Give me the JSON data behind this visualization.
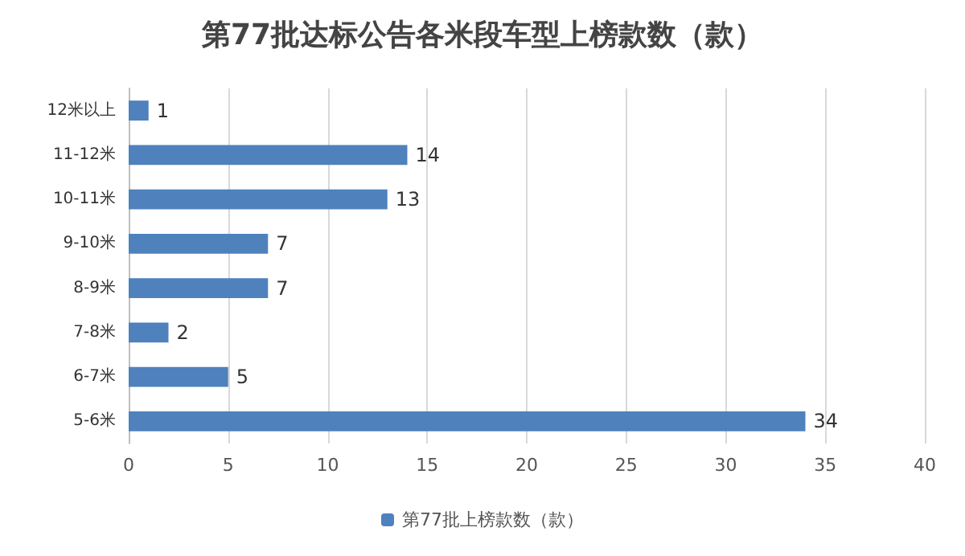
{
  "chart_data": {
    "type": "bar",
    "orientation": "horizontal",
    "title": "第77批达标公告各米段车型上榜款数（款）",
    "categories": [
      "12米以上",
      "11-12米",
      "10-11米",
      "9-10米",
      "8-9米",
      "7-8米",
      "6-7米",
      "5-6米"
    ],
    "series": [
      {
        "name": "第77批上榜款数（款）",
        "color": "#4f81bd",
        "values": [
          1,
          14,
          13,
          7,
          7,
          2,
          5,
          34
        ]
      }
    ],
    "xlim": [
      0,
      40
    ],
    "xticks": [
      0,
      5,
      10,
      15,
      20,
      25,
      30,
      35,
      40
    ],
    "grid": "x",
    "legend": "bottom",
    "data_labels": true
  }
}
